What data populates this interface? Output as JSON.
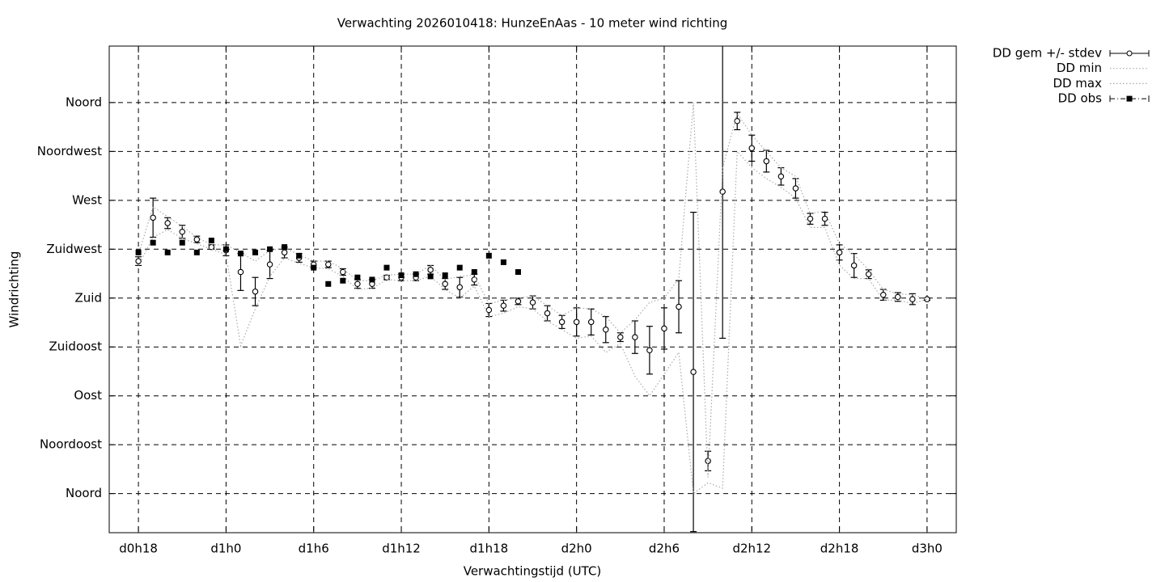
{
  "chart_data": {
    "type": "line",
    "title": "Verwachting 2026010418: HunzeEnAas - 10 meter wind richting",
    "x_label": "Verwachtingstijd (UTC)",
    "y_label": "Windrichting",
    "xlim": [
      16,
      74
    ],
    "ylim": [
      -36,
      412
    ],
    "xticks": [
      {
        "value": 18,
        "label": "d0h18"
      },
      {
        "value": 24,
        "label": "d1h0"
      },
      {
        "value": 30,
        "label": "d1h6"
      },
      {
        "value": 36,
        "label": "d1h12"
      },
      {
        "value": 42,
        "label": "d1h18"
      },
      {
        "value": 48,
        "label": "d2h0"
      },
      {
        "value": 54,
        "label": "d2h6"
      },
      {
        "value": 60,
        "label": "d2h12"
      },
      {
        "value": 66,
        "label": "d2h18"
      },
      {
        "value": 72,
        "label": "d3h0"
      }
    ],
    "yticks": [
      {
        "value": 0,
        "label": "Noord"
      },
      {
        "value": 45,
        "label": "Noordoost"
      },
      {
        "value": 90,
        "label": "Oost"
      },
      {
        "value": 135,
        "label": "Zuidoost"
      },
      {
        "value": 180,
        "label": "Zuid"
      },
      {
        "value": 225,
        "label": "Zuidwest"
      },
      {
        "value": 270,
        "label": "West"
      },
      {
        "value": 315,
        "label": "Noordwest"
      },
      {
        "value": 360,
        "label": "Noord"
      }
    ],
    "grid": true,
    "x": [
      18,
      19,
      20,
      21,
      22,
      23,
      24,
      25,
      26,
      27,
      28,
      29,
      30,
      31,
      32,
      33,
      34,
      35,
      36,
      37,
      38,
      39,
      40,
      41,
      42,
      43,
      44,
      45,
      46,
      47,
      48,
      49,
      50,
      51,
      52,
      53,
      54,
      55,
      56,
      57,
      58,
      59,
      60,
      61,
      62,
      63,
      64,
      65,
      66,
      67,
      68,
      69,
      70,
      71,
      72
    ],
    "series": [
      {
        "name": "DD gem +/- stdev",
        "color": "#000000",
        "style": "points_errorbars",
        "values": [
          214,
          254,
          249,
          241,
          234,
          227,
          224,
          204,
          186,
          211,
          222,
          217,
          211,
          211,
          204,
          193,
          193,
          199,
          199,
          199,
          206,
          193,
          190,
          197,
          169,
          173,
          177,
          176,
          166,
          158,
          158,
          158,
          151,
          144,
          144,
          132,
          152,
          172,
          112,
          30,
          278,
          343,
          318,
          306,
          292,
          281,
          253,
          253,
          222,
          210,
          202,
          183,
          181,
          179,
          179
        ],
        "errors": [
          4,
          18,
          5,
          6,
          3,
          2,
          5,
          17,
          13,
          13,
          5,
          4,
          3,
          3,
          3,
          4,
          4,
          2,
          3,
          3,
          4,
          5,
          9,
          5,
          6,
          5,
          3,
          6,
          7,
          6,
          13,
          12,
          12,
          4,
          15,
          22,
          19,
          24,
          147,
          9,
          135,
          8,
          12,
          10,
          8,
          9,
          5,
          6,
          7,
          11,
          4,
          5,
          4,
          5,
          1
        ]
      },
      {
        "name": "DD min",
        "color": "#aaaaaa",
        "style": "dotted",
        "values": [
          210,
          236,
          243,
          235,
          230,
          225,
          220,
          136,
          170,
          200,
          217,
          212,
          208,
          207,
          200,
          188,
          189,
          197,
          196,
          196,
          200,
          188,
          180,
          191,
          163,
          166,
          172,
          170,
          159,
          151,
          143,
          145,
          130,
          138,
          108,
          90,
          110,
          130,
          0,
          10,
          5,
          315,
          300,
          290,
          282,
          272,
          245,
          245,
          210,
          198,
          198,
          178,
          178,
          175,
          179
        ]
      },
      {
        "name": "DD max",
        "color": "#aaaaaa",
        "style": "dotted",
        "values": [
          220,
          264,
          255,
          246,
          236,
          229,
          229,
          222,
          214,
          224,
          226,
          220,
          214,
          214,
          207,
          196,
          196,
          201,
          202,
          202,
          210,
          197,
          200,
          201,
          175,
          178,
          180,
          182,
          173,
          164,
          171,
          170,
          163,
          148,
          160,
          176,
          180,
          198,
          360,
          15,
          300,
          350,
          330,
          315,
          300,
          292,
          258,
          260,
          230,
          220,
          206,
          188,
          184,
          183,
          179
        ]
      },
      {
        "name": "DD obs",
        "color": "#000000",
        "style": "points",
        "values": [
          222,
          231,
          222,
          231,
          222,
          233,
          225,
          221,
          222,
          225,
          227,
          219,
          208,
          193,
          196,
          199,
          197,
          208,
          201,
          202,
          200,
          201,
          208,
          204,
          219,
          213,
          204,
          null,
          null,
          null,
          null,
          null,
          null,
          null,
          null,
          null,
          null,
          null,
          null,
          null,
          null,
          null,
          null,
          null,
          null,
          null,
          null,
          null,
          null,
          null,
          null,
          null,
          null,
          null,
          null
        ]
      }
    ]
  }
}
